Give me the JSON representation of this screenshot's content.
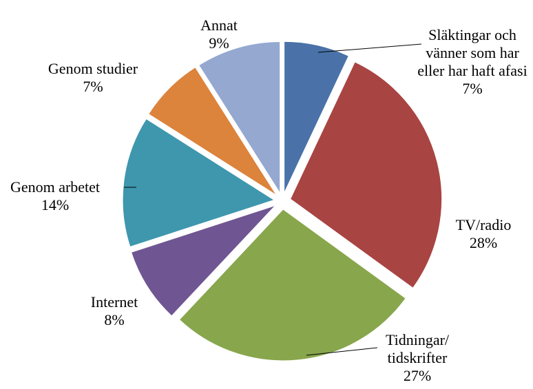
{
  "chart_data": {
    "type": "pie",
    "categories": [
      "Släktingar och vänner som har eller har haft afasi",
      "TV/radio",
      "Tidningar/ tidskrifter",
      "Internet",
      "Genom arbetet",
      "Genom studier",
      "Annat"
    ],
    "values": [
      7,
      28,
      27,
      8,
      14,
      7,
      9
    ],
    "value_labels": [
      "7%",
      "28%",
      "27%",
      "8%",
      "14%",
      "7%",
      "9%"
    ],
    "colors": [
      "#4a72a8",
      "#a84442",
      "#88a64c",
      "#6f5692",
      "#3e97ad",
      "#dc833c",
      "#94a8d0"
    ]
  }
}
